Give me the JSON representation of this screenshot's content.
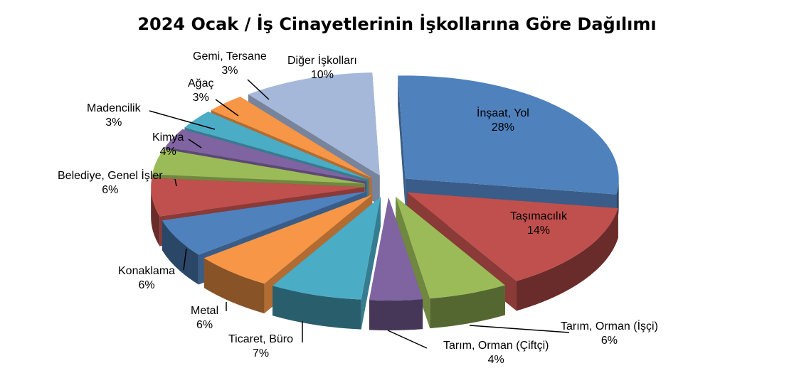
{
  "chart_data": {
    "type": "pie",
    "title": "2024 Ocak / İş Cinayetlerinin İşkollarına Göre Dağılımı",
    "slices": [
      {
        "name": "İnşaat, Yol",
        "value": 28,
        "label": "28%",
        "color": "#4f81bd"
      },
      {
        "name": "Taşımacılık",
        "value": 14,
        "label": "14%",
        "color": "#c0504d"
      },
      {
        "name": "Tarım, Orman (İşçi)",
        "value": 6,
        "label": "6%",
        "color": "#9bbb59"
      },
      {
        "name": "Tarım, Orman (Çiftçi)",
        "value": 4,
        "label": "4%",
        "color": "#8064a2"
      },
      {
        "name": "Ticaret, Büro",
        "value": 7,
        "label": "7%",
        "color": "#4bacc6"
      },
      {
        "name": "Metal",
        "value": 6,
        "label": "6%",
        "color": "#f79646"
      },
      {
        "name": "Konaklama",
        "value": 6,
        "label": "6%",
        "color": "#4f81bd"
      },
      {
        "name": "Belediye, Genel İşler",
        "value": 6,
        "label": "6%",
        "color": "#c0504d"
      },
      {
        "name": "Kimya",
        "value": 4,
        "label": "4%",
        "color": "#9bbb59"
      },
      {
        "name": "Madencilik",
        "value": 3,
        "label": "3%",
        "color": "#8064a2"
      },
      {
        "name": "Ağaç",
        "value": 3,
        "label": "3%",
        "color": "#4bacc6"
      },
      {
        "name": "Gemi, Tersane",
        "value": 3,
        "label": "3%",
        "color": "#f79646"
      },
      {
        "name": "Diğer İşkolları",
        "value": 10,
        "label": "10%",
        "color": "#a5b8d9"
      }
    ],
    "legend": "none",
    "data_labels": "category name and percentage"
  }
}
